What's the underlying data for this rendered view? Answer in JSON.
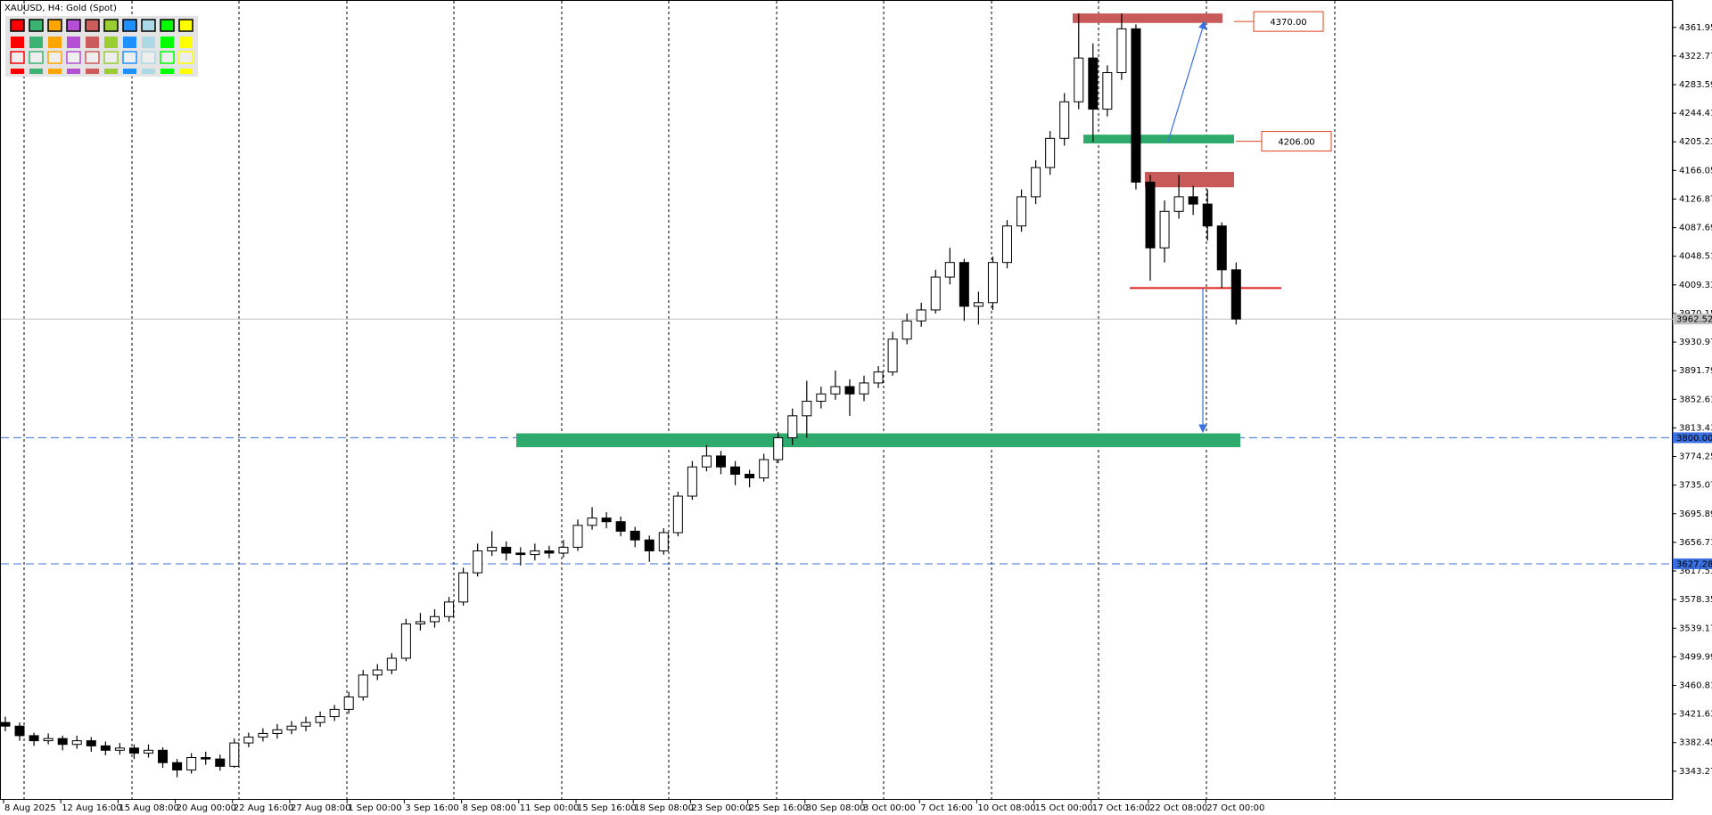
{
  "chart_data": {
    "type": "candlestick",
    "title": "XAUUSD, H4:  Gold (Spot)",
    "categories": [
      "8 Aug 2025",
      null,
      null,
      null,
      "12 Aug 16:00",
      null,
      null,
      null,
      "15 Aug 08:00",
      null,
      null,
      null,
      "20 Aug 00:00",
      null,
      null,
      null,
      "22 Aug 16:00",
      null,
      null,
      null,
      "27 Aug 08:00",
      null,
      null,
      null,
      "1 Sep 00:00",
      null,
      null,
      null,
      "3 Sep 16:00",
      null,
      null,
      null,
      "8 Sep 08:00",
      null,
      null,
      null,
      "11 Sep 00:00",
      null,
      null,
      null,
      "15 Sep 16:00",
      null,
      null,
      null,
      "18 Sep 08:00",
      null,
      null,
      null,
      "23 Sep 00:00",
      null,
      null,
      null,
      "25 Sep 16:00",
      null,
      null,
      null,
      "30 Sep 08:00",
      null,
      null,
      null,
      "3 Oct 00:00",
      null,
      null,
      null,
      "7 Oct 16:00",
      null,
      null,
      null,
      "10 Oct 08:00",
      null,
      null,
      null,
      "15 Oct 00:00",
      null,
      null,
      null,
      "17 Oct 16:00",
      null,
      null,
      null,
      "22 Oct 08:00",
      null,
      null,
      null,
      "27 Oct 00:00",
      null,
      null
    ],
    "open": [
      3410,
      3405,
      3392,
      3385,
      3388,
      3380,
      3385,
      3378,
      3372,
      3375,
      3368,
      3372,
      3355,
      3345,
      3362,
      3360,
      3350,
      3382,
      3390,
      3395,
      3400,
      3405,
      3410,
      3418,
      3428,
      3445,
      3475,
      3482,
      3498,
      3545,
      3548,
      3555,
      3575,
      3615,
      3645,
      3650,
      3642,
      3640,
      3645,
      3642,
      3650,
      3680,
      3690,
      3685,
      3672,
      3660,
      3645,
      3670,
      3720,
      3760,
      3775,
      3760,
      3750,
      3745,
      3770,
      3800,
      3830,
      3850,
      3860,
      3870,
      3860,
      3875,
      3890,
      3935,
      3960,
      3975,
      4020,
      4040,
      3980,
      3985,
      4040,
      4090,
      4130,
      4170,
      4210,
      4260,
      4320,
      4250,
      4300,
      4360,
      4150,
      4060,
      4110,
      4130,
      4120,
      4090,
      4030
    ],
    "high": [
      3418,
      3410,
      3396,
      3395,
      3392,
      3392,
      3390,
      3384,
      3382,
      3380,
      3380,
      3376,
      3360,
      3368,
      3370,
      3366,
      3388,
      3396,
      3402,
      3408,
      3412,
      3418,
      3425,
      3434,
      3452,
      3482,
      3490,
      3505,
      3552,
      3560,
      3565,
      3582,
      3622,
      3655,
      3672,
      3658,
      3650,
      3655,
      3652,
      3660,
      3688,
      3705,
      3698,
      3692,
      3678,
      3666,
      3676,
      3726,
      3768,
      3790,
      3782,
      3768,
      3756,
      3778,
      3808,
      3840,
      3878,
      3870,
      3892,
      3880,
      3885,
      3898,
      3945,
      3970,
      3985,
      4030,
      4060,
      4045,
      4000,
      4048,
      4098,
      4140,
      4180,
      4220,
      4272,
      4381,
      4340,
      4310,
      4381,
      4366,
      4160,
      4125,
      4160,
      4145,
      4140,
      4095,
      4040
    ],
    "low": [
      3398,
      3385,
      3378,
      3380,
      3372,
      3374,
      3370,
      3365,
      3366,
      3360,
      3362,
      3348,
      3335,
      3340,
      3352,
      3344,
      3348,
      3376,
      3384,
      3388,
      3394,
      3398,
      3404,
      3412,
      3422,
      3440,
      3468,
      3476,
      3494,
      3536,
      3540,
      3548,
      3570,
      3610,
      3638,
      3632,
      3625,
      3632,
      3635,
      3636,
      3645,
      3674,
      3676,
      3665,
      3650,
      3630,
      3640,
      3665,
      3715,
      3754,
      3750,
      3735,
      3732,
      3740,
      3765,
      3790,
      3800,
      3840,
      3852,
      3830,
      3850,
      3868,
      3885,
      3928,
      3952,
      3970,
      4010,
      3960,
      3955,
      3975,
      4032,
      4082,
      4120,
      4160,
      4200,
      4250,
      4205,
      4240,
      4290,
      4140,
      4015,
      4040,
      4100,
      4105,
      4070,
      4005,
      3955
    ],
    "close": [
      3405,
      3392,
      3385,
      3388,
      3380,
      3385,
      3378,
      3372,
      3375,
      3368,
      3372,
      3355,
      3345,
      3362,
      3360,
      3350,
      3382,
      3390,
      3395,
      3400,
      3405,
      3410,
      3418,
      3428,
      3445,
      3475,
      3482,
      3498,
      3545,
      3548,
      3555,
      3575,
      3615,
      3645,
      3650,
      3642,
      3640,
      3645,
      3642,
      3650,
      3680,
      3690,
      3685,
      3672,
      3660,
      3645,
      3670,
      3720,
      3760,
      3775,
      3760,
      3750,
      3745,
      3770,
      3800,
      3830,
      3850,
      3860,
      3870,
      3860,
      3875,
      3890,
      3935,
      3960,
      3975,
      4020,
      4040,
      3980,
      3985,
      4040,
      4090,
      4130,
      4170,
      4210,
      4260,
      4320,
      4250,
      4300,
      4360,
      4150,
      4060,
      4110,
      4130,
      4120,
      4090,
      4030,
      3962.52
    ],
    "ylim": [
      3304.05,
      4399.46
    ],
    "yticks": [
      4361.95,
      4322.77,
      4283.59,
      4244.41,
      4205.23,
      4166.05,
      4126.87,
      4087.69,
      4048.51,
      4009.33,
      3970.15,
      3930.97,
      3891.79,
      3852.61,
      3813.43,
      3774.25,
      3735.07,
      3695.89,
      3656.71,
      3617.53,
      3578.35,
      3539.17,
      3499.99,
      3460.81,
      3421.63,
      3382.45,
      3343.27
    ],
    "current_price": {
      "value": 3962.52,
      "label": "3962.52"
    },
    "hlines": [
      {
        "value": 3800,
        "label": "3800.00",
        "color": "#3a6fe0"
      },
      {
        "value": 3627.28,
        "label": "3627.28",
        "color": "#3a6fe0"
      }
    ],
    "zones": [
      {
        "color": "#c85a5a",
        "range": [
          4381,
          4368
        ]
      },
      {
        "color": "#2eaa6c",
        "range": [
          4215,
          4203
        ]
      },
      {
        "color": "#c85a5a",
        "range": [
          4164,
          4143
        ]
      },
      {
        "color": "#2eaa6c",
        "range": [
          3806,
          3787
        ]
      }
    ],
    "support_line": {
      "value": 4005,
      "color": "#e02020"
    },
    "arrows": [
      {
        "from": 4206,
        "to": 4370,
        "color": "#3a6fe0"
      },
      {
        "from": 4005,
        "to": 3808,
        "color": "#3a6fe0"
      }
    ],
    "price_labels": [
      {
        "value": 4370,
        "label": "4370.00"
      },
      {
        "value": 4206,
        "label": "4206.00"
      }
    ]
  }
}
